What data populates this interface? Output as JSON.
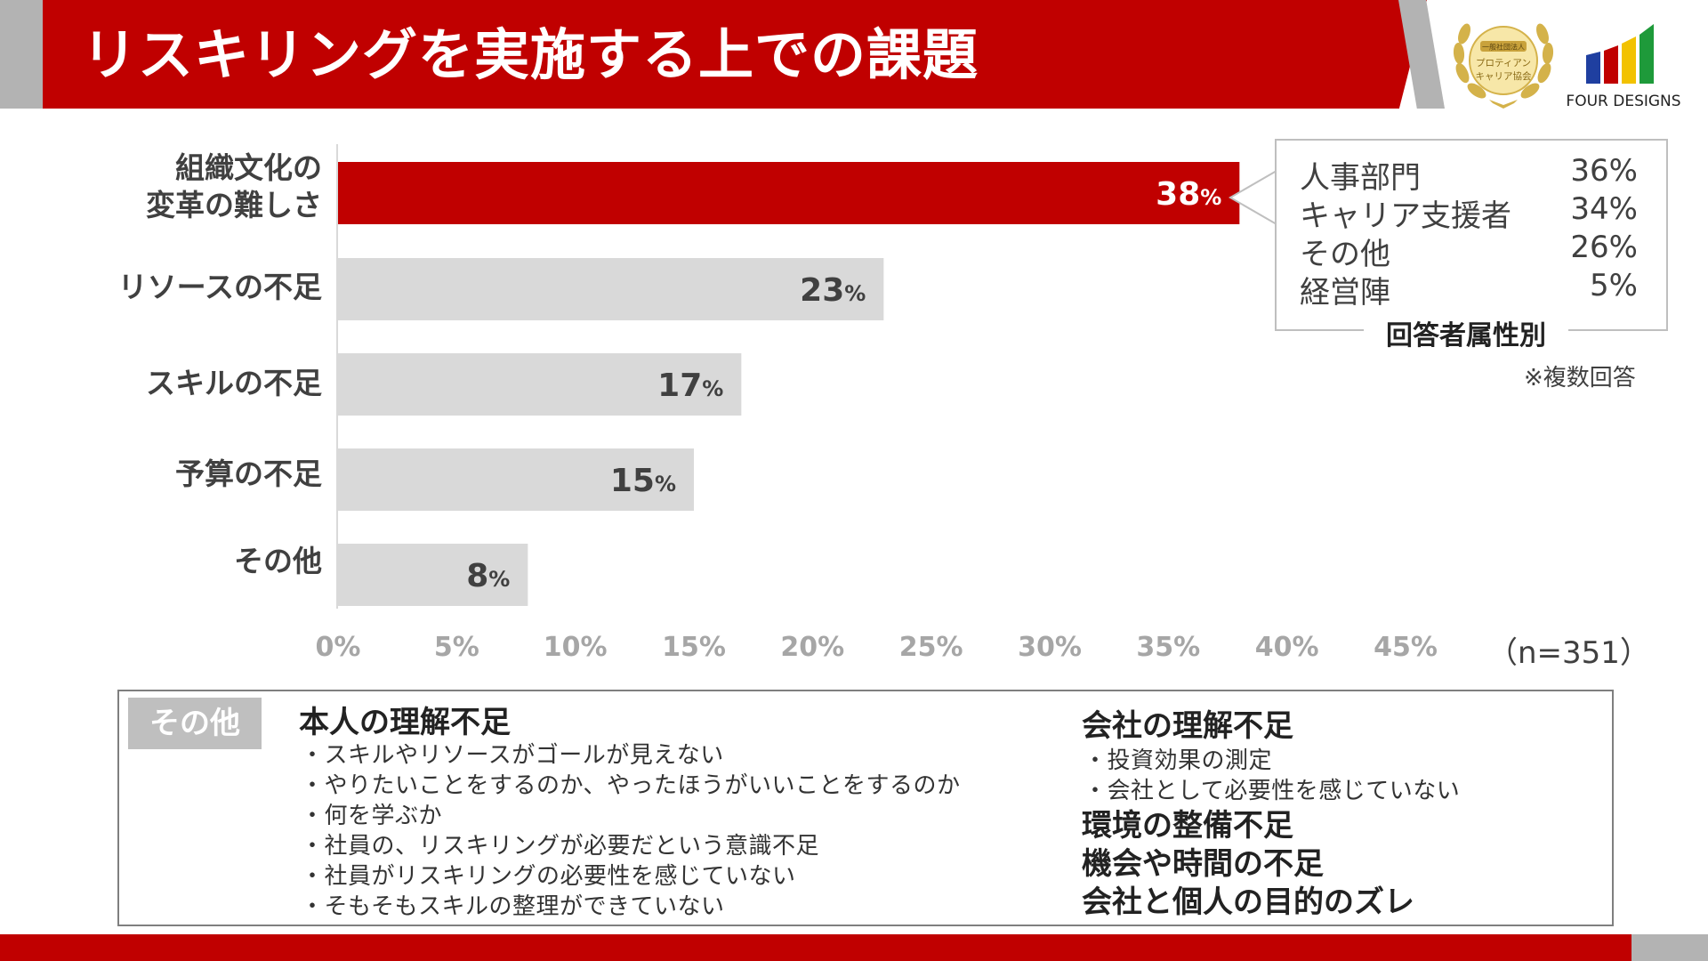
{
  "header": {
    "title": "リスキリングを実施する上での課題"
  },
  "logos": {
    "seal_text_line1": "一般社団法人",
    "seal_text_line2": "プロティアン",
    "seal_text_line3": "キャリア協会",
    "brand_name": "FOUR DESIGNS",
    "brand_colors": [
      "#1f3fa0",
      "#c00000",
      "#f2c200",
      "#1e9a3a"
    ]
  },
  "colors": {
    "highlight_bar": "#c00000",
    "bar": "#d9d9d9",
    "header_red": "#c00000"
  },
  "chart_data": {
    "type": "bar",
    "orientation": "horizontal",
    "categories": [
      "組織文化の変革の難しさ",
      "リソースの不足",
      "スキルの不足",
      "予算の不足",
      "その他"
    ],
    "category_lines": [
      [
        "組織文化の",
        "変革の難しさ"
      ],
      [
        "リソースの不足"
      ],
      [
        "スキルの不足"
      ],
      [
        "予算の不足"
      ],
      [
        "その他"
      ]
    ],
    "values": [
      38,
      23,
      17,
      15,
      8
    ],
    "value_labels": [
      "38",
      "23",
      "17",
      "15",
      "8"
    ],
    "value_unit": "%",
    "highlight_index": 0,
    "xlim": [
      0,
      45
    ],
    "ticks": [
      "0%",
      "5%",
      "10%",
      "15%",
      "20%",
      "25%",
      "30%",
      "35%",
      "40%",
      "45%"
    ],
    "tick_values": [
      0,
      5,
      10,
      15,
      20,
      25,
      30,
      35,
      40,
      45
    ],
    "note": "（n=351）",
    "grid": false
  },
  "callout": {
    "rows": [
      {
        "name": "人事部門",
        "value": "36%"
      },
      {
        "name": "キャリア支援者",
        "value": "34%"
      },
      {
        "name": "その他",
        "value": "26%"
      },
      {
        "name": "経営陣",
        "value": "5%"
      }
    ],
    "caption": "回答者属性別",
    "note": "※複数回答"
  },
  "other": {
    "tag": "その他",
    "groups_left": [
      {
        "title": "本人の理解不足",
        "items": [
          "・スキルやリソースがゴールが見えない",
          "・やりたいことをするのか、やったほうがいいことをするのか",
          "・何を学ぶか",
          "・社員の、リスキリングが必要だという意識不足",
          "・社員がリスキリングの必要性を感じていない",
          "・そもそもスキルの整理ができていない"
        ]
      }
    ],
    "groups_right": [
      {
        "title": "会社の理解不足",
        "items": [
          "・投資効果の測定",
          "・会社として必要性を感じていない"
        ]
      }
    ],
    "headings_right": [
      "環境の整備不足",
      "機会や時間の不足",
      "会社と個人の目的のズレ"
    ]
  }
}
